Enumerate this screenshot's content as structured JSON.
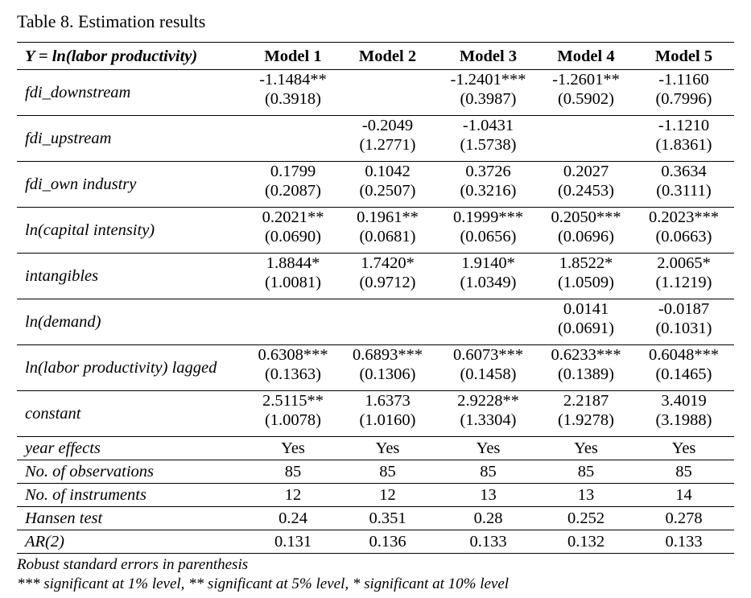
{
  "caption": "Table 8. Estimation results",
  "header": {
    "dependent": "Y = ln(labor productivity)",
    "models": [
      "Model 1",
      "Model 2",
      "Model 3",
      "Model 4",
      "Model 5"
    ]
  },
  "coef_rows": [
    {
      "label": "fdi_downstream",
      "cells": [
        {
          "coef": "-1.1484**",
          "se": "(0.3918)"
        },
        {
          "coef": "",
          "se": ""
        },
        {
          "coef": "-1.2401***",
          "se": "(0.3987)"
        },
        {
          "coef": "-1.2601**",
          "se": "(0.5902)"
        },
        {
          "coef": "-1.1160",
          "se": "(0.7996)"
        }
      ]
    },
    {
      "label": "fdi_upstream",
      "cells": [
        {
          "coef": "",
          "se": ""
        },
        {
          "coef": "-0.2049",
          "se": "(1.2771)"
        },
        {
          "coef": "-1.0431",
          "se": "(1.5738)"
        },
        {
          "coef": "",
          "se": ""
        },
        {
          "coef": "-1.1210",
          "se": "(1.8361)"
        }
      ]
    },
    {
      "label": "fdi_own industry",
      "cells": [
        {
          "coef": "0.1799",
          "se": "(0.2087)"
        },
        {
          "coef": "0.1042",
          "se": "(0.2507)"
        },
        {
          "coef": "0.3726",
          "se": "(0.3216)"
        },
        {
          "coef": "0.2027",
          "se": "(0.2453)"
        },
        {
          "coef": "0.3634",
          "se": "(0.3111)"
        }
      ]
    },
    {
      "label": "ln(capital intensity)",
      "cells": [
        {
          "coef": "0.2021**",
          "se": "(0.0690)"
        },
        {
          "coef": "0.1961**",
          "se": "(0.0681)"
        },
        {
          "coef": "0.1999***",
          "se": "(0.0656)"
        },
        {
          "coef": "0.2050***",
          "se": "(0.0696)"
        },
        {
          "coef": "0.2023***",
          "se": "(0.0663)"
        }
      ]
    },
    {
      "label": "intangibles",
      "cells": [
        {
          "coef": "1.8844*",
          "se": "(1.0081)"
        },
        {
          "coef": "1.7420*",
          "se": "(0.9712)"
        },
        {
          "coef": "1.9140*",
          "se": "(1.0349)"
        },
        {
          "coef": "1.8522*",
          "se": "(1.0509)"
        },
        {
          "coef": "2.0065*",
          "se": "(1.1219)"
        }
      ]
    },
    {
      "label": "ln(demand)",
      "cells": [
        {
          "coef": "",
          "se": ""
        },
        {
          "coef": "",
          "se": ""
        },
        {
          "coef": "",
          "se": ""
        },
        {
          "coef": "0.0141",
          "se": "(0.0691)"
        },
        {
          "coef": "-0.0187",
          "se": "(0.1031)"
        }
      ]
    },
    {
      "label": "ln(labor productivity) lagged",
      "cells": [
        {
          "coef": "0.6308***",
          "se": "(0.1363)"
        },
        {
          "coef": "0.6893***",
          "se": "(0.1306)"
        },
        {
          "coef": "0.6073***",
          "se": "(0.1458)"
        },
        {
          "coef": "0.6233***",
          "se": "(0.1389)"
        },
        {
          "coef": "0.6048***",
          "se": "(0.1465)"
        }
      ]
    },
    {
      "label": "constant",
      "cells": [
        {
          "coef": "2.5115**",
          "se": "(1.0078)"
        },
        {
          "coef": "1.6373",
          "se": "(1.0160)"
        },
        {
          "coef": "2.9228**",
          "se": "(1.3304)"
        },
        {
          "coef": "2.2187",
          "se": "(1.9278)"
        },
        {
          "coef": "3.4019",
          "se": "(3.1988)"
        }
      ]
    }
  ],
  "stat_rows": [
    {
      "label": "year effects",
      "values": [
        "Yes",
        "Yes",
        "Yes",
        "Yes",
        "Yes"
      ]
    },
    {
      "label": "No. of observations",
      "values": [
        "85",
        "85",
        "85",
        "85",
        "85"
      ]
    },
    {
      "label": "No. of instruments",
      "values": [
        "12",
        "12",
        "13",
        "13",
        "14"
      ]
    },
    {
      "label": "Hansen test",
      "values": [
        "0.24",
        "0.351",
        "0.28",
        "0.252",
        "0.278"
      ]
    },
    {
      "label": "AR(2)",
      "values": [
        "0.131",
        "0.136",
        "0.133",
        "0.132",
        "0.133"
      ]
    }
  ],
  "notes": [
    "Robust standard errors in parenthesis",
    "*** significant at 1% level, ** significant at 5% level, * significant at 10% level"
  ]
}
